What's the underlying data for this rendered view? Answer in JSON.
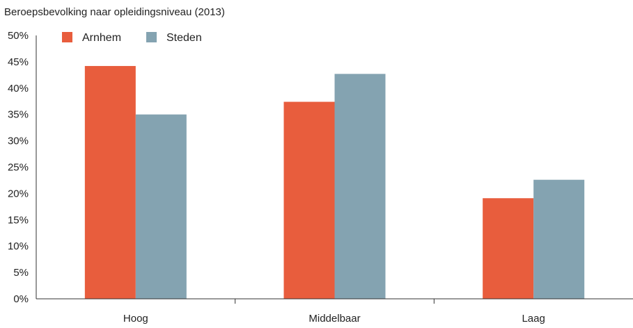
{
  "chart_data": {
    "type": "bar",
    "title": "Beroepsbevolking naar opleidingsniveau (2013)",
    "categories": [
      "Hoog",
      "Middelbaar",
      "Laag"
    ],
    "series": [
      {
        "name": "Arnhem",
        "values": [
          44.2,
          37.4,
          19.1
        ],
        "color": "#e85d3d"
      },
      {
        "name": "Steden",
        "values": [
          35.0,
          42.7,
          22.6
        ],
        "color": "#84a3b1"
      }
    ],
    "ylim": [
      0,
      50
    ],
    "yticks": [
      0,
      5,
      10,
      15,
      20,
      25,
      30,
      35,
      40,
      45,
      50
    ],
    "ytick_labels": [
      "0%",
      "5%",
      "10%",
      "15%",
      "20%",
      "25%",
      "30%",
      "35%",
      "40%",
      "45%",
      "50%"
    ],
    "legend_position": "top-left",
    "grid": false
  }
}
